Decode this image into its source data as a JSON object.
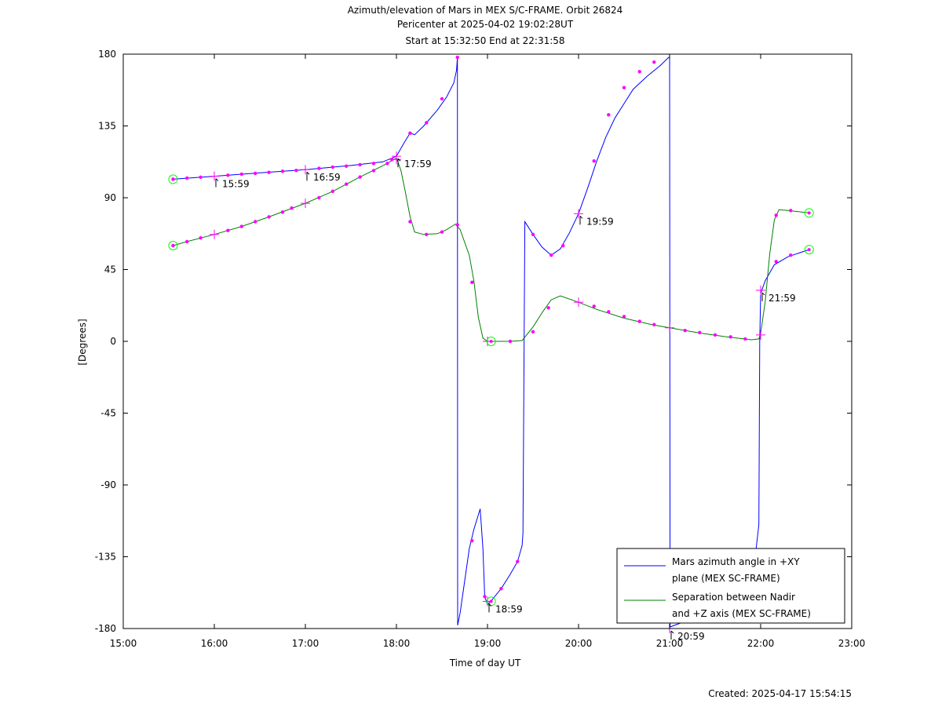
{
  "title_lines": [
    "Azimuth/elevation of Mars in MEX S/C-FRAME.  Orbit 26824",
    "Pericenter at 2025-04-02 19:02:28UT",
    "Start at 15:32:50 End at 22:31:58"
  ],
  "footer": "Created: 2025-04-17 15:54:15",
  "colors": {
    "azimuth": "#0000ff",
    "separation": "#008000",
    "markers": "#ff00ff",
    "endpoints": "#00ff00"
  },
  "chart_data": {
    "type": "line",
    "xlabel": "Time of day UT",
    "ylabel": "[Degrees]",
    "xlim": [
      15.0,
      23.0
    ],
    "ylim": [
      -180,
      180
    ],
    "xticks": [
      15,
      16,
      17,
      18,
      19,
      20,
      21,
      22,
      23
    ],
    "xtick_labels": [
      "15:00",
      "16:00",
      "17:00",
      "18:00",
      "19:00",
      "20:00",
      "21:00",
      "22:00",
      "23:00"
    ],
    "yticks": [
      180,
      135,
      90,
      45,
      0,
      -45,
      -90,
      -135,
      -180
    ],
    "ytick_labels": [
      "180",
      "135",
      "90",
      "45",
      "0",
      "-45",
      "-90",
      "-135",
      "-180"
    ],
    "grid": false,
    "legend_position": "bottom-right",
    "series": [
      {
        "name": "Mars azimuth angle in +XY plane (MEX SC-FRAME)",
        "legend_lines": [
          "Mars azimuth angle in +XY",
          "plane (MEX SC-FRAME)"
        ],
        "points": [
          [
            15.547,
            101.6
          ],
          [
            16.0,
            103.5
          ],
          [
            16.5,
            105.6
          ],
          [
            17.0,
            107.6
          ],
          [
            17.5,
            110.2
          ],
          [
            17.85,
            112.5
          ],
          [
            18.0,
            116
          ],
          [
            18.08,
            124
          ],
          [
            18.15,
            130.5
          ],
          [
            18.2,
            129.5
          ],
          [
            18.3,
            135
          ],
          [
            18.45,
            145
          ],
          [
            18.55,
            153
          ],
          [
            18.63,
            162
          ],
          [
            18.66,
            170
          ],
          [
            18.67,
            178
          ],
          [
            18.672,
            -178
          ],
          [
            18.7,
            -170
          ],
          [
            18.75,
            -150
          ],
          [
            18.8,
            -130
          ],
          [
            18.85,
            -118
          ],
          [
            18.92,
            -105
          ],
          [
            18.95,
            -130
          ],
          [
            18.97,
            -160
          ],
          [
            19.0,
            -165
          ],
          [
            19.05,
            -162
          ],
          [
            19.15,
            -155
          ],
          [
            19.25,
            -146
          ],
          [
            19.33,
            -138
          ],
          [
            19.38,
            -128
          ],
          [
            19.39,
            -120
          ],
          [
            19.41,
            75
          ],
          [
            19.5,
            67
          ],
          [
            19.6,
            59
          ],
          [
            19.7,
            54
          ],
          [
            19.8,
            58
          ],
          [
            19.9,
            68
          ],
          [
            20.0,
            80
          ],
          [
            20.1,
            96
          ],
          [
            20.2,
            113
          ],
          [
            20.3,
            128
          ],
          [
            20.4,
            140
          ],
          [
            20.5,
            149
          ],
          [
            20.6,
            158
          ],
          [
            20.75,
            166
          ],
          [
            20.9,
            173
          ],
          [
            20.99,
            178
          ],
          [
            21.0,
            178
          ],
          [
            21.005,
            -179
          ],
          [
            21.1,
            -177
          ],
          [
            21.4,
            -170
          ],
          [
            21.7,
            -158
          ],
          [
            21.85,
            -145
          ],
          [
            21.95,
            -130
          ],
          [
            21.98,
            -115
          ],
          [
            21.99,
            0
          ],
          [
            22.0,
            30
          ],
          [
            22.05,
            38
          ],
          [
            22.15,
            48
          ],
          [
            22.3,
            53
          ],
          [
            22.532,
            57.5
          ]
        ]
      },
      {
        "name": "Separation between Nadir and +Z axis (MEX SC-FRAME)",
        "legend_lines": [
          "Separation between Nadir",
          "and +Z axis (MEX SC-FRAME)"
        ],
        "points": [
          [
            15.547,
            60
          ],
          [
            15.7,
            62.5
          ],
          [
            16.0,
            67
          ],
          [
            16.3,
            72
          ],
          [
            16.6,
            78
          ],
          [
            17.0,
            86.5
          ],
          [
            17.3,
            94
          ],
          [
            17.6,
            103
          ],
          [
            17.9,
            111.5
          ],
          [
            18.0,
            115
          ],
          [
            18.05,
            107
          ],
          [
            18.1,
            93
          ],
          [
            18.15,
            78
          ],
          [
            18.2,
            68.5
          ],
          [
            18.3,
            67
          ],
          [
            18.45,
            67.5
          ],
          [
            18.55,
            70
          ],
          [
            18.65,
            73.5
          ],
          [
            18.7,
            70
          ],
          [
            18.8,
            54
          ],
          [
            18.85,
            38
          ],
          [
            18.9,
            15
          ],
          [
            18.95,
            2
          ],
          [
            19.0,
            0
          ],
          [
            19.1,
            0
          ],
          [
            19.25,
            0
          ],
          [
            19.38,
            0.5
          ],
          [
            19.5,
            9
          ],
          [
            19.6,
            18
          ],
          [
            19.7,
            26
          ],
          [
            19.8,
            28.5
          ],
          [
            20.0,
            24.5
          ],
          [
            20.2,
            20
          ],
          [
            20.5,
            14.5
          ],
          [
            20.8,
            10.5
          ],
          [
            21.0,
            8.5
          ],
          [
            21.3,
            5.5
          ],
          [
            21.6,
            3
          ],
          [
            21.9,
            1
          ],
          [
            21.98,
            1.5
          ],
          [
            22.0,
            5
          ],
          [
            22.05,
            25
          ],
          [
            22.1,
            55
          ],
          [
            22.15,
            76
          ],
          [
            22.2,
            82.5
          ],
          [
            22.3,
            82
          ],
          [
            22.532,
            80.5
          ]
        ]
      }
    ],
    "markers": {
      "azimuth_dots": [
        [
          15.547,
          101.6
        ],
        [
          15.7,
          102.3
        ],
        [
          15.85,
          102.9
        ],
        [
          16.15,
          104.1
        ],
        [
          16.3,
          104.8
        ],
        [
          16.45,
          105.3
        ],
        [
          16.6,
          105.9
        ],
        [
          16.75,
          106.6
        ],
        [
          16.9,
          107.1
        ],
        [
          17.15,
          108.4
        ],
        [
          17.3,
          109.2
        ],
        [
          17.45,
          109.8
        ],
        [
          17.6,
          110.7
        ],
        [
          17.75,
          111.5
        ],
        [
          17.95,
          114
        ],
        [
          18.15,
          130.5
        ],
        [
          18.33,
          137
        ],
        [
          18.5,
          152
        ],
        [
          18.67,
          178
        ],
        [
          18.83,
          -125
        ],
        [
          18.97,
          -160
        ],
        [
          19.15,
          -155
        ],
        [
          19.33,
          -138
        ],
        [
          19.5,
          67
        ],
        [
          19.7,
          54
        ],
        [
          19.83,
          60
        ],
        [
          20.17,
          113
        ],
        [
          20.33,
          142
        ],
        [
          20.5,
          159
        ],
        [
          20.67,
          169
        ],
        [
          20.83,
          175
        ],
        [
          22.17,
          50
        ],
        [
          22.33,
          54
        ]
      ],
      "separation_dots": [
        [
          15.547,
          60
        ],
        [
          15.7,
          62.5
        ],
        [
          15.85,
          64.8
        ],
        [
          16.15,
          69.5
        ],
        [
          16.3,
          72
        ],
        [
          16.45,
          75
        ],
        [
          16.6,
          78
        ],
        [
          16.75,
          81
        ],
        [
          16.85,
          83.5
        ],
        [
          17.15,
          90
        ],
        [
          17.3,
          94
        ],
        [
          17.45,
          98.5
        ],
        [
          17.6,
          103
        ],
        [
          17.75,
          107
        ],
        [
          17.9,
          111.5
        ],
        [
          18.15,
          75
        ],
        [
          18.33,
          67
        ],
        [
          18.5,
          68.5
        ],
        [
          18.67,
          73
        ],
        [
          18.83,
          37
        ],
        [
          19.25,
          0
        ],
        [
          19.5,
          6
        ],
        [
          19.67,
          21
        ],
        [
          20.17,
          22
        ],
        [
          20.33,
          18.5
        ],
        [
          20.5,
          15.5
        ],
        [
          20.67,
          12.5
        ],
        [
          20.83,
          10.5
        ],
        [
          21.17,
          6.8
        ],
        [
          21.33,
          5.5
        ],
        [
          21.5,
          4
        ],
        [
          21.67,
          2.8
        ],
        [
          21.83,
          1.5
        ],
        [
          22.17,
          79
        ],
        [
          22.33,
          82
        ]
      ],
      "hour_crosses": [
        [
          16.0,
          103.5
        ],
        [
          17.0,
          107.6
        ],
        [
          18.0,
          116
        ],
        [
          19.0,
          -163
        ],
        [
          20.0,
          80
        ],
        [
          21.0,
          -180
        ],
        [
          22.0,
          32
        ],
        [
          16.0,
          67
        ],
        [
          17.0,
          86.5
        ],
        [
          18.0,
          114
        ],
        [
          19.0,
          0
        ],
        [
          20.0,
          24.5
        ],
        [
          21.0,
          8.5
        ],
        [
          22.0,
          4
        ]
      ],
      "endpoint_circles": [
        [
          15.547,
          101.6
        ],
        [
          22.532,
          57.5
        ],
        [
          15.547,
          60
        ],
        [
          22.532,
          80.5
        ],
        [
          19.04,
          0
        ],
        [
          19.04,
          -163
        ]
      ]
    },
    "annotations": [
      {
        "label": "15:59",
        "x": 16.0,
        "y": 103.5
      },
      {
        "label": "16:59",
        "x": 17.0,
        "y": 107.6
      },
      {
        "label": "17:59",
        "x": 18.0,
        "y": 116
      },
      {
        "label": "18:59",
        "x": 19.0,
        "y": -163
      },
      {
        "label": "19:59",
        "x": 20.0,
        "y": 80
      },
      {
        "label": "20:59",
        "x": 21.0,
        "y": -180
      },
      {
        "label": "21:59",
        "x": 22.0,
        "y": 32
      }
    ]
  }
}
